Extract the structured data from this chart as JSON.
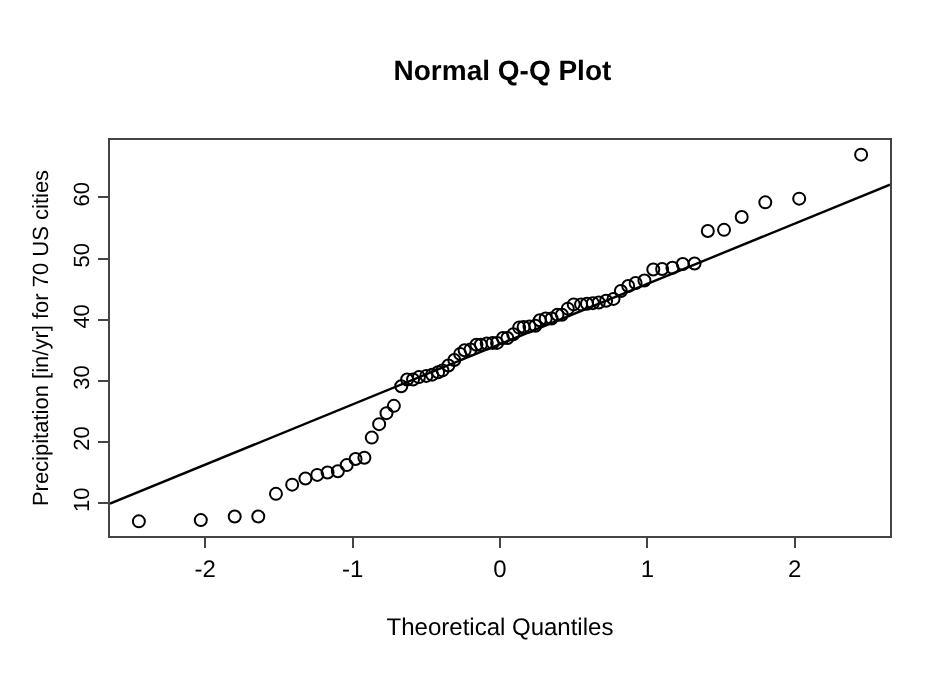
{
  "chart_data": {
    "type": "scatter",
    "title": "Normal Q-Q Plot",
    "xlabel": "Theoretical Quantiles",
    "ylabel": "Precipitation [in/yr] for 70 US cities",
    "xlim": [
      -2.646,
      2.646
    ],
    "ylim": [
      4.6,
      69.4
    ],
    "xticks": [
      -2,
      -1,
      0,
      1,
      2
    ],
    "yticks": [
      10,
      20,
      30,
      40,
      50,
      60
    ],
    "grid": false,
    "legend": false,
    "series": [
      {
        "color": "#000000",
        "marker": "circle",
        "x": [
          -2.45,
          -2.03,
          -1.8,
          -1.64,
          -1.52,
          -1.41,
          -1.32,
          -1.24,
          -1.17,
          -1.1,
          -1.04,
          -0.98,
          -0.92,
          -0.87,
          -0.82,
          -0.77,
          -0.72,
          -0.67,
          -0.63,
          -0.59,
          -0.55,
          -0.5,
          -0.46,
          -0.42,
          -0.39,
          -0.35,
          -0.31,
          -0.27,
          -0.24,
          -0.2,
          -0.16,
          -0.13,
          -0.09,
          -0.05,
          -0.02,
          0.02,
          0.05,
          0.09,
          0.13,
          0.16,
          0.2,
          0.24,
          0.27,
          0.31,
          0.35,
          0.39,
          0.42,
          0.46,
          0.5,
          0.55,
          0.59,
          0.63,
          0.67,
          0.72,
          0.77,
          0.82,
          0.87,
          0.92,
          0.98,
          1.04,
          1.1,
          1.17,
          1.24,
          1.32,
          1.41,
          1.52,
          1.64,
          1.8,
          2.03,
          2.45
        ],
        "values": [
          7.0,
          7.2,
          7.8,
          7.8,
          11.5,
          13.0,
          14.0,
          14.6,
          15.0,
          15.2,
          16.2,
          17.2,
          17.4,
          20.7,
          22.9,
          24.7,
          25.9,
          29.1,
          30.2,
          30.2,
          30.6,
          30.8,
          31.0,
          31.4,
          31.7,
          32.5,
          33.4,
          34.4,
          35.0,
          35.1,
          35.9,
          35.9,
          36.1,
          36.2,
          36.2,
          37.0,
          37.0,
          37.6,
          38.7,
          38.8,
          38.9,
          39.0,
          39.9,
          40.2,
          40.2,
          40.8,
          40.8,
          41.8,
          42.5,
          42.5,
          42.6,
          42.7,
          42.8,
          43.1,
          43.4,
          44.7,
          45.5,
          46.0,
          46.4,
          48.2,
          48.3,
          48.5,
          49.1,
          49.2,
          54.5,
          54.7,
          56.8,
          59.2,
          59.8,
          67.0
        ]
      },
      {
        "type": "line",
        "color": "#000000",
        "marker": "none",
        "line_style": "solid",
        "x": [
          -2.646,
          2.646
        ],
        "values": [
          9.9,
          62.1
        ]
      }
    ]
  }
}
